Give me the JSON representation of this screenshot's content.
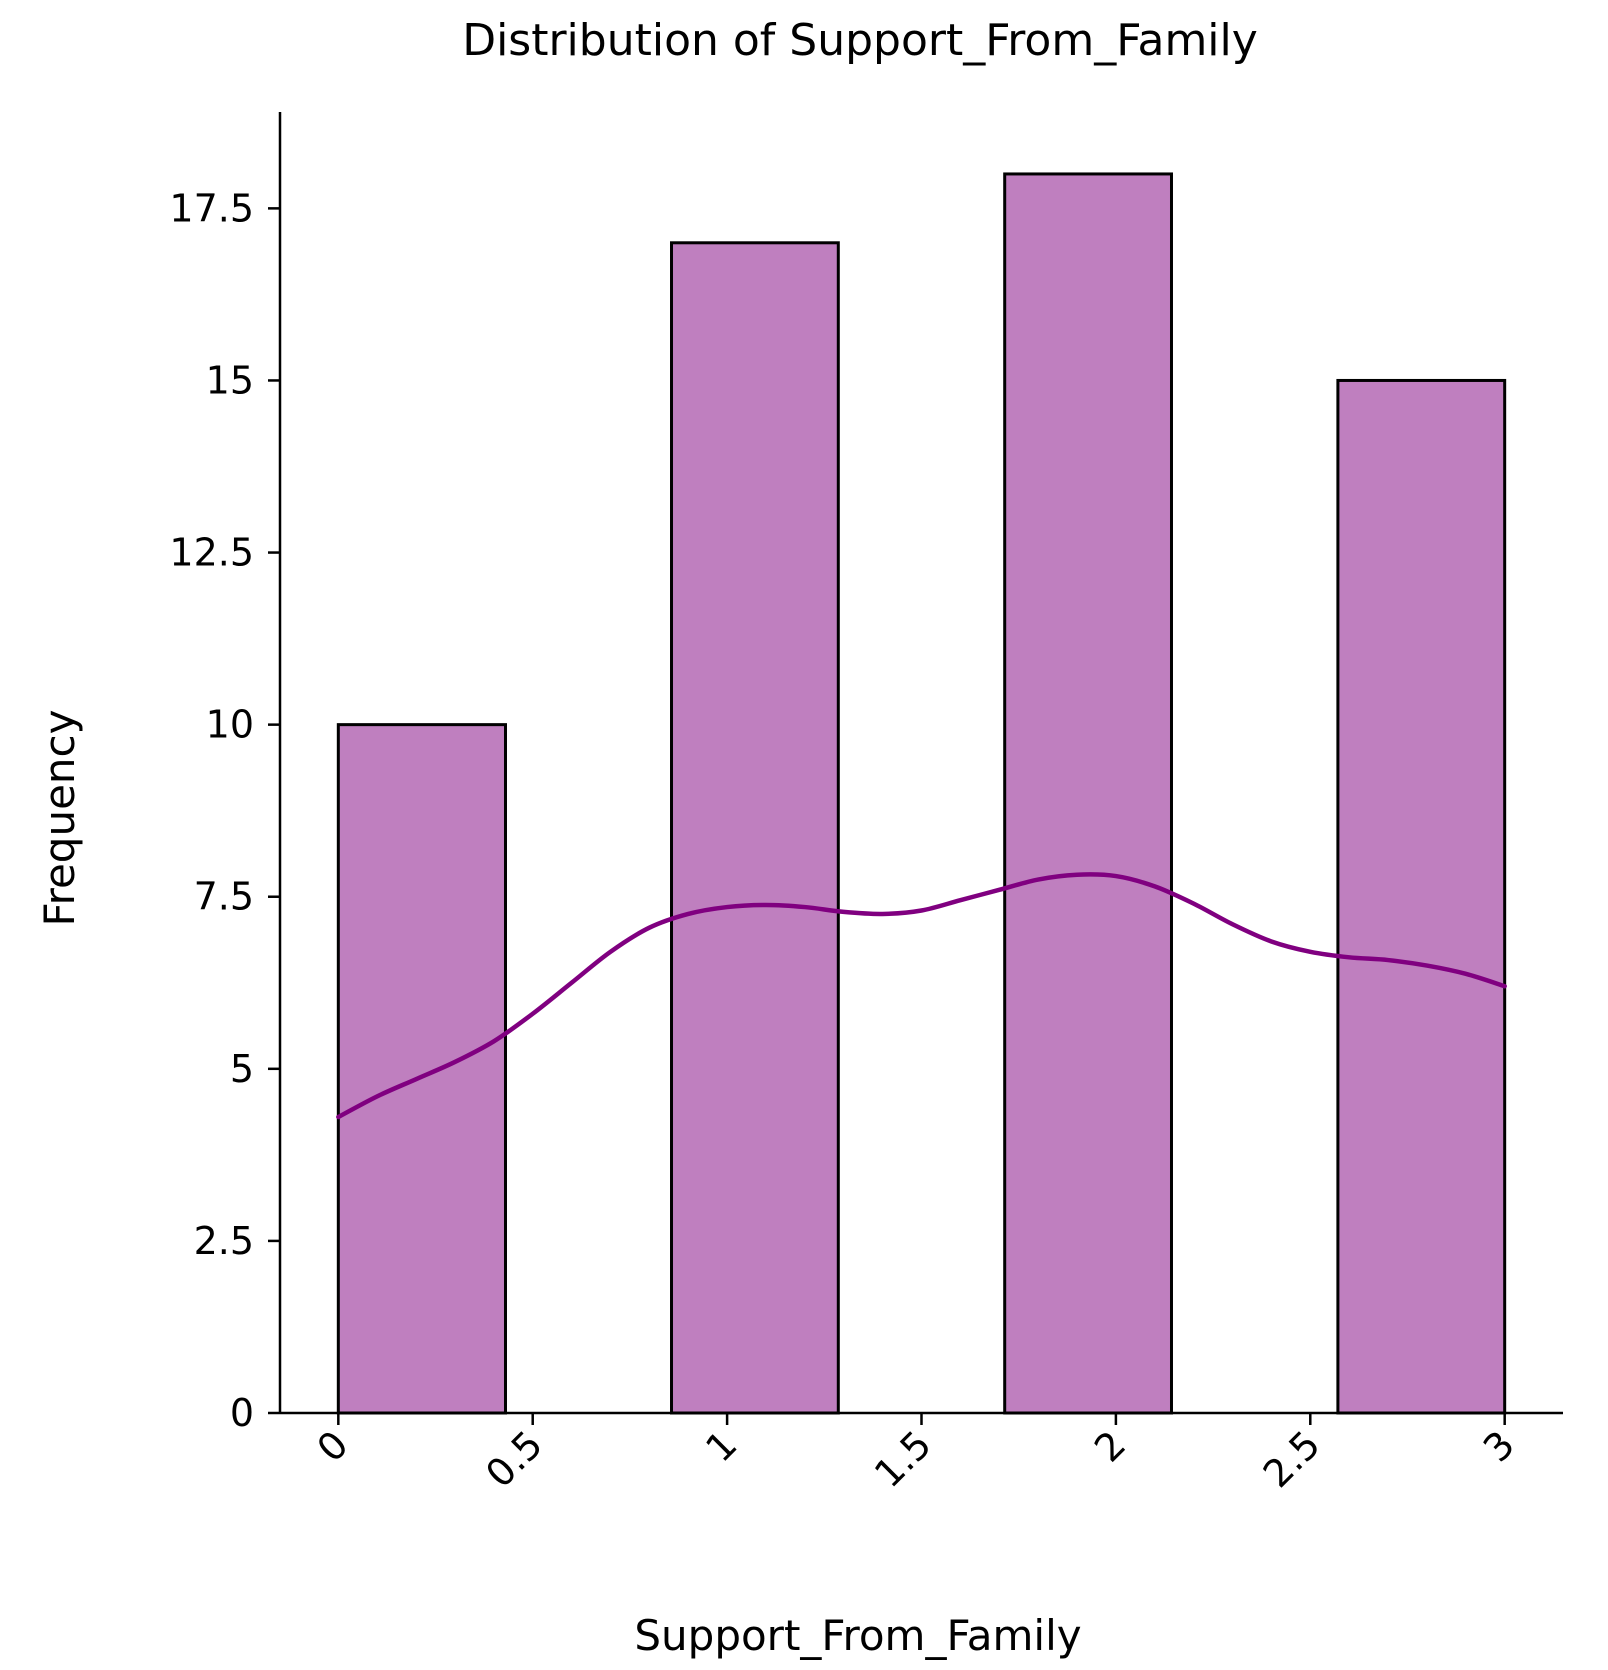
{
  "chart_data": {
    "type": "bar",
    "title": "Distribution of Support_From_Family",
    "xlabel": "Support_From_Family",
    "ylabel": "Frequency",
    "xlim": [
      -0.15,
      3.15
    ],
    "ylim": [
      0,
      18.9
    ],
    "x_ticks": [
      {
        "value": 0,
        "label": "0"
      },
      {
        "value": 0.5,
        "label": "0.5"
      },
      {
        "value": 1,
        "label": "1"
      },
      {
        "value": 1.5,
        "label": "1.5"
      },
      {
        "value": 2,
        "label": "2"
      },
      {
        "value": 2.5,
        "label": "2.5"
      },
      {
        "value": 3,
        "label": "3"
      }
    ],
    "y_ticks": [
      {
        "value": 0,
        "label": "0"
      },
      {
        "value": 2.5,
        "label": "2.5"
      },
      {
        "value": 5,
        "label": "5"
      },
      {
        "value": 7.5,
        "label": "7.5"
      },
      {
        "value": 10,
        "label": "10"
      },
      {
        "value": 12.5,
        "label": "12.5"
      },
      {
        "value": 15,
        "label": "15"
      },
      {
        "value": 17.5,
        "label": "17.5"
      }
    ],
    "bins": [
      {
        "x0": 0.0,
        "x1": 0.43,
        "count": 10
      },
      {
        "x0": 0.857,
        "x1": 1.286,
        "count": 17
      },
      {
        "x0": 1.714,
        "x1": 2.143,
        "count": 18
      },
      {
        "x0": 2.571,
        "x1": 3.0,
        "count": 15
      }
    ],
    "kde": {
      "x": [
        0,
        0.1,
        0.2,
        0.3,
        0.4,
        0.5,
        0.6,
        0.7,
        0.8,
        0.9,
        1.0,
        1.1,
        1.2,
        1.3,
        1.4,
        1.5,
        1.6,
        1.7,
        1.8,
        1.9,
        2.0,
        2.1,
        2.2,
        2.3,
        2.4,
        2.5,
        2.6,
        2.7,
        2.8,
        2.9,
        3.0
      ],
      "y": [
        4.3,
        4.6,
        4.85,
        5.1,
        5.4,
        5.8,
        6.25,
        6.7,
        7.05,
        7.25,
        7.35,
        7.38,
        7.35,
        7.28,
        7.25,
        7.3,
        7.45,
        7.6,
        7.75,
        7.82,
        7.8,
        7.65,
        7.4,
        7.1,
        6.85,
        6.7,
        6.62,
        6.58,
        6.5,
        6.38,
        6.2
      ]
    },
    "grid": false,
    "colors": {
      "bar_fill": "#bf7fbf",
      "bar_edge": "#000000",
      "kde_line": "#800080",
      "axis": "#000000"
    }
  }
}
